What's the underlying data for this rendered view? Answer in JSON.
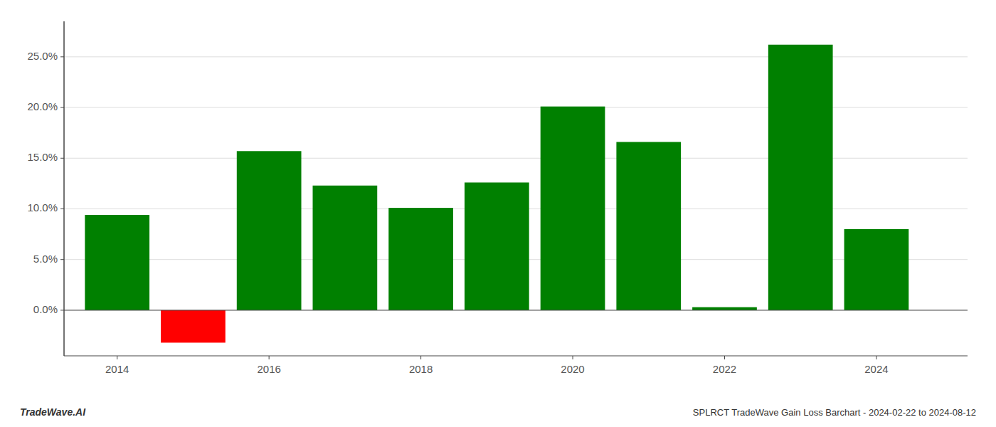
{
  "chart_data": {
    "type": "bar",
    "title": "SPLRCT TradeWave Gain Loss Barchart - 2024-02-22 to 2024-08-12",
    "annotations": [
      "TradeWave.AI"
    ],
    "x": [
      2014,
      2015,
      2016,
      2017,
      2018,
      2019,
      2020,
      2021,
      2022,
      2023,
      2024
    ],
    "values": [
      0.094,
      -0.032,
      0.157,
      0.123,
      0.101,
      0.126,
      0.201,
      0.166,
      0.003,
      0.262,
      0.08
    ],
    "colors": [
      "#008000",
      "#FF0000",
      "#008000",
      "#008000",
      "#008000",
      "#008000",
      "#008000",
      "#008000",
      "#008000",
      "#008000",
      "#008000"
    ],
    "xlim": [
      2013.3,
      2025.2
    ],
    "xticks": [
      2014,
      2016,
      2018,
      2020,
      2022,
      2024
    ],
    "ylim": [
      -0.045,
      0.285
    ],
    "yticks": [
      {
        "value": 0.0,
        "label": "0.0%"
      },
      {
        "value": 0.05,
        "label": "5.0%"
      },
      {
        "value": 0.1,
        "label": "10.0%"
      },
      {
        "value": 0.15,
        "label": "15.0%"
      },
      {
        "value": 0.2,
        "label": "20.0%"
      },
      {
        "value": 0.25,
        "label": "25.0%"
      }
    ],
    "grid": true
  }
}
